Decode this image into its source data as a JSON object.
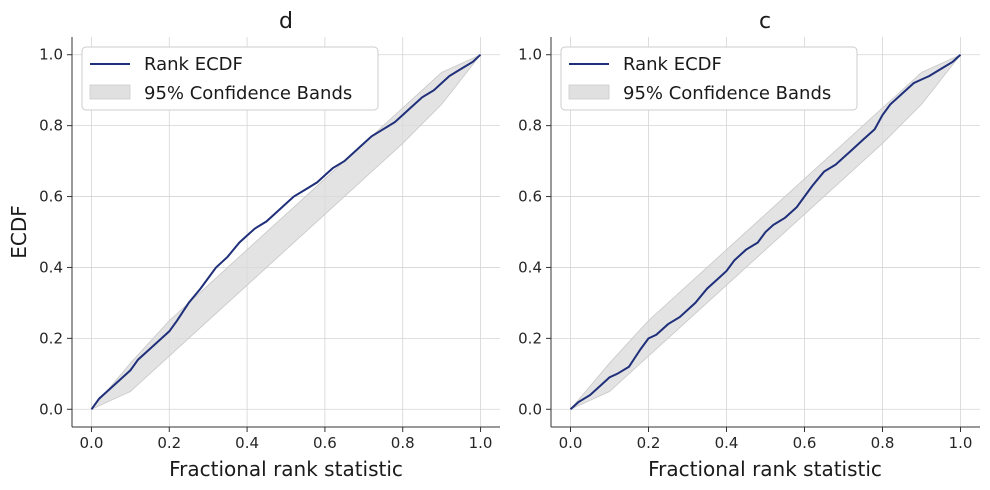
{
  "chart_data": [
    {
      "type": "line",
      "title": "d",
      "xlabel": "Fractional rank statistic",
      "ylabel": "ECDF",
      "xlim": [
        -0.05,
        1.05
      ],
      "ylim": [
        -0.05,
        1.05
      ],
      "x_ticks": [
        "0.0",
        "0.2",
        "0.4",
        "0.6",
        "0.8",
        "1.0"
      ],
      "y_ticks": [
        "0.0",
        "0.2",
        "0.4",
        "0.6",
        "0.8",
        "1.0"
      ],
      "grid": true,
      "legend_position": "top-left",
      "legend": [
        "Rank ECDF",
        "95% Confidence Bands"
      ],
      "series": [
        {
          "name": "Rank ECDF",
          "color": "#1f2f7a",
          "x": [
            0.0,
            0.02,
            0.05,
            0.08,
            0.1,
            0.12,
            0.15,
            0.18,
            0.2,
            0.22,
            0.25,
            0.28,
            0.3,
            0.32,
            0.35,
            0.38,
            0.4,
            0.42,
            0.45,
            0.48,
            0.5,
            0.52,
            0.55,
            0.58,
            0.6,
            0.62,
            0.65,
            0.68,
            0.7,
            0.72,
            0.75,
            0.78,
            0.8,
            0.82,
            0.85,
            0.88,
            0.9,
            0.92,
            0.95,
            0.98,
            1.0
          ],
          "y": [
            0.0,
            0.03,
            0.06,
            0.09,
            0.11,
            0.14,
            0.17,
            0.2,
            0.22,
            0.25,
            0.3,
            0.34,
            0.37,
            0.4,
            0.43,
            0.47,
            0.49,
            0.51,
            0.53,
            0.56,
            0.58,
            0.6,
            0.62,
            0.64,
            0.66,
            0.68,
            0.7,
            0.73,
            0.75,
            0.77,
            0.79,
            0.81,
            0.83,
            0.85,
            0.88,
            0.9,
            0.92,
            0.94,
            0.96,
            0.98,
            1.0
          ]
        },
        {
          "name": "95% Confidence Bands",
          "type": "band",
          "color": "#d9d9d9",
          "x": [
            0.0,
            0.1,
            0.2,
            0.3,
            0.4,
            0.5,
            0.6,
            0.7,
            0.8,
            0.9,
            1.0
          ],
          "lower": [
            0.0,
            0.05,
            0.15,
            0.25,
            0.35,
            0.45,
            0.55,
            0.65,
            0.75,
            0.86,
            1.0
          ],
          "upper": [
            0.0,
            0.13,
            0.25,
            0.35,
            0.45,
            0.55,
            0.65,
            0.75,
            0.85,
            0.95,
            1.0
          ]
        }
      ]
    },
    {
      "type": "line",
      "title": "c",
      "xlabel": "Fractional rank statistic",
      "ylabel": "",
      "xlim": [
        -0.05,
        1.05
      ],
      "ylim": [
        -0.05,
        1.05
      ],
      "x_ticks": [
        "0.0",
        "0.2",
        "0.4",
        "0.6",
        "0.8",
        "1.0"
      ],
      "y_ticks": [
        "0.0",
        "0.2",
        "0.4",
        "0.6",
        "0.8",
        "1.0"
      ],
      "grid": true,
      "legend_position": "top-left",
      "legend": [
        "Rank ECDF",
        "95% Confidence Bands"
      ],
      "series": [
        {
          "name": "Rank ECDF",
          "color": "#1f2f7a",
          "x": [
            0.0,
            0.02,
            0.05,
            0.08,
            0.1,
            0.12,
            0.15,
            0.18,
            0.2,
            0.22,
            0.25,
            0.28,
            0.3,
            0.32,
            0.35,
            0.38,
            0.4,
            0.42,
            0.45,
            0.48,
            0.5,
            0.52,
            0.55,
            0.58,
            0.6,
            0.62,
            0.65,
            0.68,
            0.7,
            0.72,
            0.75,
            0.78,
            0.8,
            0.82,
            0.85,
            0.88,
            0.9,
            0.92,
            0.95,
            0.98,
            1.0
          ],
          "y": [
            0.0,
            0.02,
            0.04,
            0.07,
            0.09,
            0.1,
            0.12,
            0.17,
            0.2,
            0.21,
            0.24,
            0.26,
            0.28,
            0.3,
            0.34,
            0.37,
            0.39,
            0.42,
            0.45,
            0.47,
            0.5,
            0.52,
            0.54,
            0.57,
            0.6,
            0.63,
            0.67,
            0.69,
            0.71,
            0.73,
            0.76,
            0.79,
            0.83,
            0.86,
            0.89,
            0.92,
            0.93,
            0.94,
            0.96,
            0.98,
            1.0
          ]
        },
        {
          "name": "95% Confidence Bands",
          "type": "band",
          "color": "#d9d9d9",
          "x": [
            0.0,
            0.1,
            0.2,
            0.3,
            0.4,
            0.5,
            0.6,
            0.7,
            0.8,
            0.9,
            1.0
          ],
          "lower": [
            0.0,
            0.05,
            0.15,
            0.25,
            0.35,
            0.45,
            0.55,
            0.65,
            0.75,
            0.86,
            1.0
          ],
          "upper": [
            0.0,
            0.13,
            0.25,
            0.35,
            0.45,
            0.55,
            0.65,
            0.75,
            0.85,
            0.95,
            1.0
          ]
        }
      ]
    }
  ]
}
